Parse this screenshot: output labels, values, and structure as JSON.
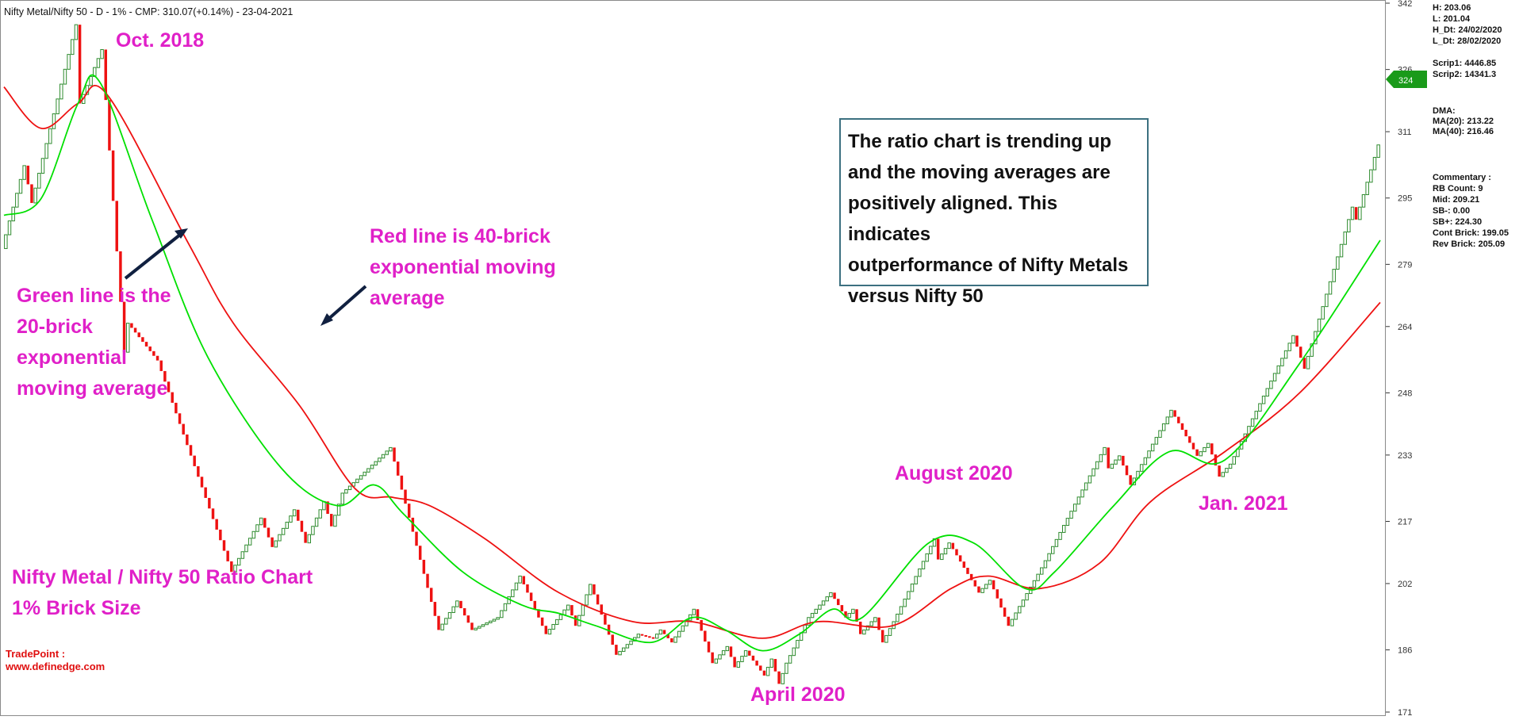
{
  "header": {
    "title": "Nifty Metal/Nifty 50 - D - 1% - CMP: 310.07(+0.14%) - 23-04-2021"
  },
  "annotations": {
    "oct2018": "Oct. 2018",
    "apr2020": "April 2020",
    "aug2020": "August 2020",
    "jan2021": "Jan. 2021",
    "green_line": [
      "Green line is the",
      "20-brick",
      "exponential",
      "moving average"
    ],
    "red_line": [
      "Red line is 40-brick",
      "exponential moving",
      "average"
    ],
    "chart_name": [
      "Nifty Metal / Nifty 50 Ratio Chart",
      "1% Brick Size"
    ]
  },
  "commentary_box": [
    "The ratio chart is trending up",
    "and the moving averages are",
    "positively aligned. This indicates",
    "outperformance of Nifty Metals",
    "versus Nifty 50"
  ],
  "tradepoint": {
    "label": "TradePoint :",
    "url": "www.definedge.com"
  },
  "price_tag": {
    "value": "324",
    "color": "#1a9a1a"
  },
  "info_panel": {
    "hl": [
      "H: 203.06",
      "L: 201.04",
      "H_Dt: 24/02/2020",
      "L_Dt: 28/02/2020"
    ],
    "scrips": [
      "Scrip1: 4446.85",
      "Scrip2: 14341.3"
    ],
    "dma": [
      "DMA:",
      "MA(20): 213.22",
      "MA(40): 216.46"
    ],
    "commentary": [
      "Commentary :",
      "RB Count: 9",
      "Mid: 209.21",
      "SB-: 0.00",
      "SB+: 224.30",
      "Cont Brick: 199.05",
      "Rev Brick: 205.09"
    ]
  },
  "colors": {
    "up_brick": "#2e8b2e",
    "down_brick": "#ee1111",
    "ma20": "#00e000",
    "ma40": "#ee1111",
    "annotation": "#e020c8",
    "arrow": "#102040"
  },
  "chart_data": {
    "type": "renko",
    "brick_size_pct": 1,
    "y_ticks": [
      171,
      186,
      202,
      217,
      233,
      248,
      264,
      279,
      295,
      311,
      326,
      342
    ],
    "ylim": [
      171,
      342
    ],
    "ma_legend": [
      "20-brick EMA (green)",
      "40-brick EMA (red)"
    ],
    "pivots": [
      [
        0,
        283
      ],
      [
        6,
        303
      ],
      [
        8,
        294
      ],
      [
        20,
        337
      ],
      [
        21,
        318
      ],
      [
        27,
        331
      ],
      [
        33,
        258
      ],
      [
        34,
        265
      ],
      [
        42,
        256
      ],
      [
        62,
        205
      ],
      [
        70,
        218
      ],
      [
        73,
        211
      ],
      [
        79,
        220
      ],
      [
        82,
        212
      ],
      [
        87,
        222
      ],
      [
        89,
        216
      ],
      [
        92,
        224
      ],
      [
        105,
        235
      ],
      [
        118,
        191
      ],
      [
        123,
        198
      ],
      [
        127,
        191
      ],
      [
        134,
        194
      ],
      [
        140,
        204
      ],
      [
        147,
        190
      ],
      [
        153,
        197
      ],
      [
        155,
        192
      ],
      [
        159,
        202
      ],
      [
        166,
        185
      ],
      [
        172,
        190
      ],
      [
        176,
        189
      ],
      [
        178,
        191
      ],
      [
        181,
        188
      ],
      [
        187,
        196
      ],
      [
        192,
        183
      ],
      [
        196,
        187
      ],
      [
        198,
        182
      ],
      [
        201,
        186
      ],
      [
        206,
        180
      ],
      [
        208,
        184
      ],
      [
        210,
        178
      ],
      [
        212,
        183
      ],
      [
        218,
        194
      ],
      [
        224,
        200
      ],
      [
        228,
        194
      ],
      [
        230,
        196
      ],
      [
        232,
        190
      ],
      [
        236,
        194
      ],
      [
        238,
        188
      ],
      [
        241,
        193
      ],
      [
        252,
        213
      ],
      [
        253,
        208
      ],
      [
        256,
        212
      ],
      [
        264,
        200
      ],
      [
        267,
        203
      ],
      [
        272,
        192
      ],
      [
        281,
        206
      ],
      [
        298,
        235
      ],
      [
        299,
        230
      ],
      [
        302,
        233
      ],
      [
        305,
        226
      ],
      [
        316,
        244
      ],
      [
        323,
        233
      ],
      [
        326,
        236
      ],
      [
        329,
        228
      ],
      [
        332,
        231
      ],
      [
        349,
        262
      ],
      [
        352,
        254
      ],
      [
        365,
        293
      ],
      [
        366,
        290
      ],
      [
        372,
        308
      ]
    ],
    "ma20": [
      [
        0,
        291
      ],
      [
        10,
        295
      ],
      [
        20,
        318
      ],
      [
        26,
        323
      ],
      [
        40,
        290
      ],
      [
        55,
        257
      ],
      [
        75,
        230
      ],
      [
        90,
        221
      ],
      [
        100,
        226
      ],
      [
        108,
        219
      ],
      [
        124,
        205
      ],
      [
        140,
        197
      ],
      [
        150,
        195
      ],
      [
        160,
        192
      ],
      [
        175,
        188
      ],
      [
        186,
        194
      ],
      [
        195,
        191
      ],
      [
        205,
        186
      ],
      [
        215,
        190
      ],
      [
        224,
        196
      ],
      [
        232,
        194
      ],
      [
        250,
        212
      ],
      [
        262,
        212
      ],
      [
        276,
        201
      ],
      [
        284,
        205
      ],
      [
        300,
        221
      ],
      [
        315,
        234
      ],
      [
        330,
        232
      ],
      [
        350,
        255
      ],
      [
        372,
        285
      ]
    ],
    "ma40": [
      [
        0,
        322
      ],
      [
        10,
        312
      ],
      [
        20,
        318
      ],
      [
        28,
        320
      ],
      [
        50,
        284
      ],
      [
        62,
        265
      ],
      [
        80,
        245
      ],
      [
        95,
        225
      ],
      [
        105,
        223
      ],
      [
        115,
        221
      ],
      [
        130,
        213
      ],
      [
        150,
        200
      ],
      [
        170,
        193
      ],
      [
        186,
        193
      ],
      [
        205,
        189
      ],
      [
        220,
        193
      ],
      [
        240,
        192
      ],
      [
        256,
        201
      ],
      [
        266,
        204
      ],
      [
        280,
        201
      ],
      [
        296,
        207
      ],
      [
        310,
        222
      ],
      [
        330,
        234
      ],
      [
        350,
        248
      ],
      [
        372,
        270
      ]
    ]
  }
}
